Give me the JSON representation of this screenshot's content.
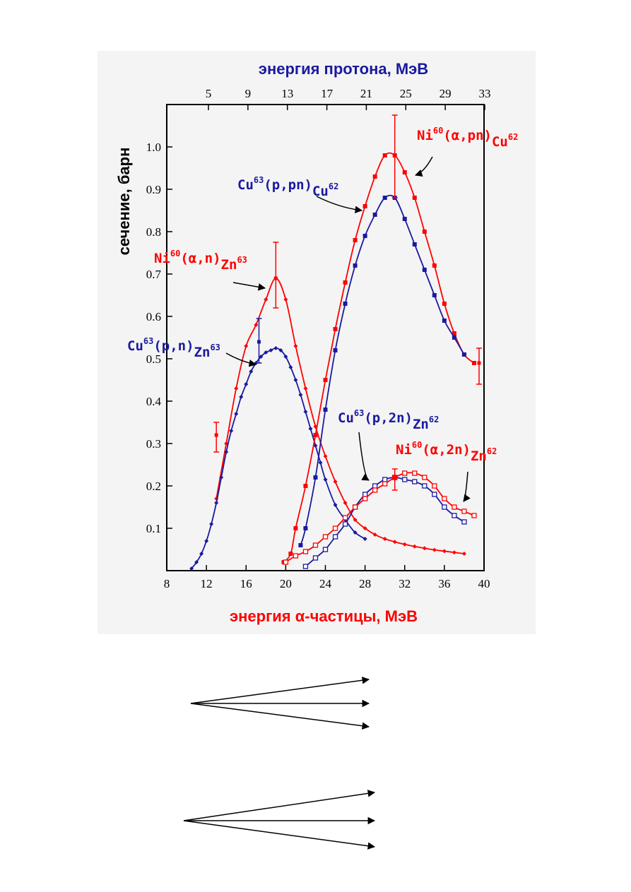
{
  "chart_data": {
    "type": "line",
    "x_top_label": "энергия протона, МэВ",
    "x_bottom_label": "энергия α-частицы, МэВ",
    "y_label": "сечение, барн",
    "x_bottom_ticks": [
      "8",
      "12",
      "16",
      "20",
      "24",
      "28",
      "32",
      "36",
      "40"
    ],
    "x_top_ticks": [
      "5",
      "9",
      "13",
      "17",
      "21",
      "25",
      "29",
      "33"
    ],
    "y_ticks": [
      "0.1",
      "0.2",
      "0.3",
      "0.4",
      "0.5",
      "0.6",
      "0.7",
      "0.8",
      "0.9",
      "1.0"
    ],
    "xlim": [
      8,
      40
    ],
    "ylim": [
      0,
      1.1
    ],
    "grid": false,
    "colors": {
      "alpha": "#ff0000",
      "proton": "#1a1aa0",
      "frame": "#f4f4f4"
    },
    "series": [
      {
        "name": "Ni60(α,n)Zn63",
        "color": "#ff0000",
        "marker": "diamond",
        "x": [
          13,
          14,
          15,
          16,
          17,
          18,
          19,
          20,
          21,
          22,
          23,
          24,
          25,
          26,
          27,
          28,
          29,
          30,
          31,
          32,
          33,
          34,
          35,
          36,
          37,
          38
        ],
        "y": [
          0.17,
          0.3,
          0.43,
          0.53,
          0.58,
          0.64,
          0.69,
          0.64,
          0.53,
          0.43,
          0.34,
          0.27,
          0.21,
          0.16,
          0.12,
          0.1,
          0.085,
          0.075,
          0.068,
          0.062,
          0.057,
          0.053,
          0.049,
          0.046,
          0.043,
          0.04
        ]
      },
      {
        "name": "Cu63(p,n)Zn63",
        "color": "#1a1aa0",
        "marker": "diamond",
        "x": [
          10.5,
          11,
          11.5,
          12,
          12.5,
          13,
          13.5,
          14,
          14.5,
          15,
          15.5,
          16,
          16.5,
          17,
          17.5,
          18,
          18.5,
          19,
          19.5,
          20,
          20.5,
          21,
          21.5,
          22,
          22.5,
          23,
          23.5,
          24,
          25,
          26,
          27,
          28
        ],
        "y": [
          0.005,
          0.02,
          0.04,
          0.07,
          0.11,
          0.16,
          0.22,
          0.28,
          0.33,
          0.37,
          0.41,
          0.44,
          0.47,
          0.49,
          0.505,
          0.515,
          0.52,
          0.525,
          0.52,
          0.505,
          0.48,
          0.45,
          0.415,
          0.375,
          0.335,
          0.295,
          0.255,
          0.215,
          0.155,
          0.12,
          0.09,
          0.075
        ]
      },
      {
        "name": "Ni60(α,pn)Cu62",
        "color": "#ff0000",
        "marker": "square",
        "x": [
          19.8,
          20.5,
          21,
          22,
          23,
          24,
          25,
          26,
          27,
          28,
          29,
          30,
          31,
          32,
          33,
          34,
          35,
          36,
          37,
          38,
          39
        ],
        "y": [
          0.02,
          0.04,
          0.1,
          0.2,
          0.32,
          0.45,
          0.57,
          0.68,
          0.78,
          0.86,
          0.93,
          0.98,
          0.98,
          0.94,
          0.88,
          0.8,
          0.72,
          0.63,
          0.56,
          0.51,
          0.49
        ]
      },
      {
        "name": "Cu63(p,pn)Cu62",
        "color": "#1a1aa0",
        "marker": "square",
        "x": [
          21.5,
          22,
          23,
          24,
          25,
          26,
          27,
          28,
          29,
          30,
          31,
          32,
          33,
          34,
          35,
          36,
          37,
          38
        ],
        "y": [
          0.06,
          0.1,
          0.22,
          0.38,
          0.52,
          0.63,
          0.72,
          0.79,
          0.84,
          0.88,
          0.88,
          0.83,
          0.77,
          0.71,
          0.65,
          0.59,
          0.55,
          0.51
        ]
      },
      {
        "name": "Cu63(p,2n)Zn62",
        "color": "#1a1aa0",
        "marker": "open-square",
        "x": [
          22,
          23,
          24,
          25,
          26,
          27,
          28,
          29,
          30,
          31,
          32,
          33,
          34,
          35,
          36,
          37,
          38
        ],
        "y": [
          0.01,
          0.03,
          0.05,
          0.08,
          0.11,
          0.15,
          0.18,
          0.2,
          0.215,
          0.22,
          0.215,
          0.21,
          0.2,
          0.18,
          0.15,
          0.13,
          0.115
        ]
      },
      {
        "name": "Ni60(α,2n)Zn62",
        "color": "#ff0000",
        "marker": "open-square",
        "x": [
          20,
          21,
          22,
          23,
          24,
          25,
          26,
          27,
          28,
          29,
          30,
          31,
          32,
          33,
          34,
          35,
          36,
          37,
          38,
          39
        ],
        "y": [
          0.02,
          0.035,
          0.045,
          0.06,
          0.08,
          0.1,
          0.125,
          0.15,
          0.17,
          0.19,
          0.205,
          0.22,
          0.23,
          0.23,
          0.22,
          0.2,
          0.17,
          0.15,
          0.14,
          0.13
        ]
      }
    ],
    "error_bars": [
      {
        "x": 13,
        "y": 0.32,
        "low": 0.28,
        "high": 0.35,
        "color": "#ff0000"
      },
      {
        "x": 19,
        "y": 0.69,
        "low": 0.62,
        "high": 0.775,
        "color": "#ff0000"
      },
      {
        "x": 17.3,
        "y": 0.54,
        "low": 0.49,
        "high": 0.595,
        "color": "#1a1aa0"
      },
      {
        "x": 31,
        "y": 0.98,
        "low": 0.88,
        "high": 1.075,
        "color": "#ff0000"
      },
      {
        "x": 39.5,
        "y": 0.49,
        "low": 0.44,
        "high": 0.525,
        "color": "#ff0000"
      },
      {
        "x": 31,
        "y": 0.22,
        "low": 0.19,
        "high": 0.24,
        "color": "#ff0000"
      }
    ],
    "annotations": [
      {
        "element": "Ni",
        "mass": "60",
        "reaction": "(α,pn)",
        "product": "Cu",
        "pmass": "62",
        "color": "#ff0000"
      },
      {
        "element": "Cu",
        "mass": "63",
        "reaction": "(p,pn)",
        "product": "Cu",
        "pmass": "62",
        "color": "#1a1aa0"
      },
      {
        "element": "Ni",
        "mass": "60",
        "reaction": "(α,n)",
        "product": "Zn",
        "pmass": "63",
        "color": "#ff0000"
      },
      {
        "element": "Cu",
        "mass": "63",
        "reaction": "(p,n)",
        "product": "Zn",
        "pmass": "63",
        "color": "#1a1aa0"
      },
      {
        "element": "Cu",
        "mass": "63",
        "reaction": "(p,2n)",
        "product": "Zn",
        "pmass": "62",
        "color": "#1a1aa0"
      },
      {
        "element": "Ni",
        "mass": "60",
        "reaction": "(α,2n)",
        "product": "Zn",
        "pmass": "62",
        "color": "#ff0000"
      }
    ]
  }
}
